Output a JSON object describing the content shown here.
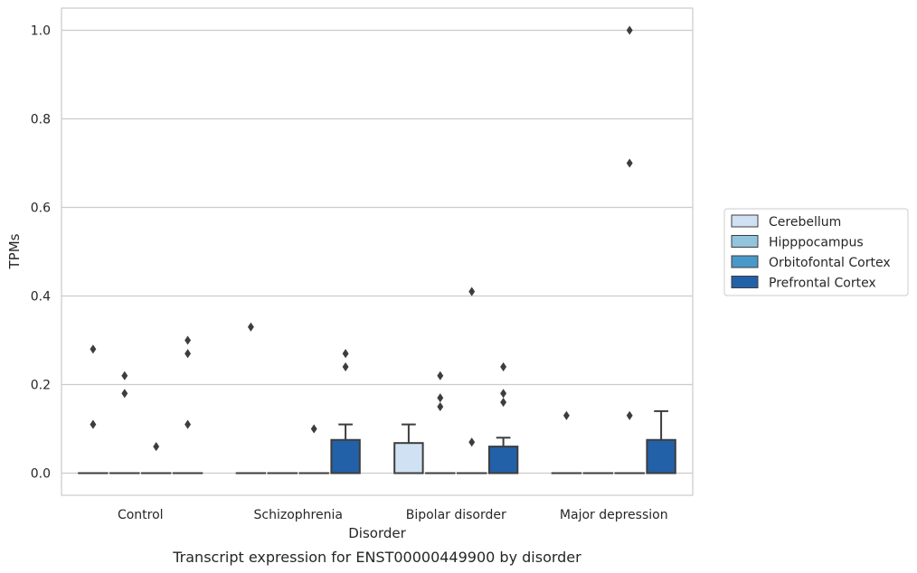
{
  "chart_data": {
    "type": "box",
    "title": "Transcript expression for ENST00000449900 by disorder",
    "xlabel": "Disorder",
    "ylabel": "TPMs",
    "ylim": [
      -0.05,
      1.05
    ],
    "yticks": [
      0.0,
      0.2,
      0.4,
      0.6,
      0.8,
      1.0
    ],
    "ytick_labels": [
      "0.0",
      "0.2",
      "0.4",
      "0.6",
      "0.8",
      "1.0"
    ],
    "grid": true,
    "legend_position": "right",
    "categories": [
      "Control",
      "Schizophrenia",
      "Bipolar disorder",
      "Major depression"
    ],
    "series": [
      {
        "name": "Cerebellum",
        "color": "#cfe1f2",
        "boxes": [
          {
            "q1": 0,
            "median": 0,
            "q3": 0,
            "whisker_low": 0,
            "whisker_high": 0,
            "outliers": [
              0.28,
              0.11
            ]
          },
          {
            "q1": 0,
            "median": 0,
            "q3": 0,
            "whisker_low": 0,
            "whisker_high": 0,
            "outliers": [
              0.33
            ]
          },
          {
            "q1": 0,
            "median": 0,
            "q3": 0.068,
            "whisker_low": 0,
            "whisker_high": 0.11,
            "outliers": []
          },
          {
            "q1": 0,
            "median": 0,
            "q3": 0,
            "whisker_low": 0,
            "whisker_high": 0,
            "outliers": [
              0.13
            ]
          }
        ]
      },
      {
        "name": "Hipppocampus",
        "color": "#93c4de",
        "boxes": [
          {
            "q1": 0,
            "median": 0,
            "q3": 0,
            "whisker_low": 0,
            "whisker_high": 0,
            "outliers": [
              0.22,
              0.18
            ]
          },
          {
            "q1": 0,
            "median": 0,
            "q3": 0,
            "whisker_low": 0,
            "whisker_high": 0,
            "outliers": []
          },
          {
            "q1": 0,
            "median": 0,
            "q3": 0,
            "whisker_low": 0,
            "whisker_high": 0,
            "outliers": [
              0.22,
              0.17,
              0.15
            ]
          },
          {
            "q1": 0,
            "median": 0,
            "q3": 0,
            "whisker_low": 0,
            "whisker_high": 0,
            "outliers": []
          }
        ]
      },
      {
        "name": "Orbitofontal Cortex",
        "color": "#4a98c9",
        "boxes": [
          {
            "q1": 0,
            "median": 0,
            "q3": 0,
            "whisker_low": 0,
            "whisker_high": 0,
            "outliers": [
              0.06
            ]
          },
          {
            "q1": 0,
            "median": 0,
            "q3": 0,
            "whisker_low": 0,
            "whisker_high": 0,
            "outliers": [
              0.1
            ]
          },
          {
            "q1": 0,
            "median": 0,
            "q3": 0,
            "whisker_low": 0,
            "whisker_high": 0,
            "outliers": [
              0.41,
              0.07
            ]
          },
          {
            "q1": 0,
            "median": 0,
            "q3": 0,
            "whisker_low": 0,
            "whisker_high": 0,
            "outliers": [
              1.0,
              0.7,
              0.13
            ]
          }
        ]
      },
      {
        "name": "Prefrontal Cortex",
        "color": "#2261a8",
        "boxes": [
          {
            "q1": 0,
            "median": 0,
            "q3": 0,
            "whisker_low": 0,
            "whisker_high": 0,
            "outliers": [
              0.3,
              0.27,
              0.11
            ]
          },
          {
            "q1": 0,
            "median": 0,
            "q3": 0.075,
            "whisker_low": 0,
            "whisker_high": 0.11,
            "outliers": [
              0.27,
              0.24
            ]
          },
          {
            "q1": 0,
            "median": 0,
            "q3": 0.06,
            "whisker_low": 0,
            "whisker_high": 0.08,
            "outliers": [
              0.24,
              0.18,
              0.16
            ]
          },
          {
            "q1": 0,
            "median": 0,
            "q3": 0.075,
            "whisker_low": 0,
            "whisker_high": 0.14,
            "outliers": []
          }
        ]
      }
    ]
  }
}
